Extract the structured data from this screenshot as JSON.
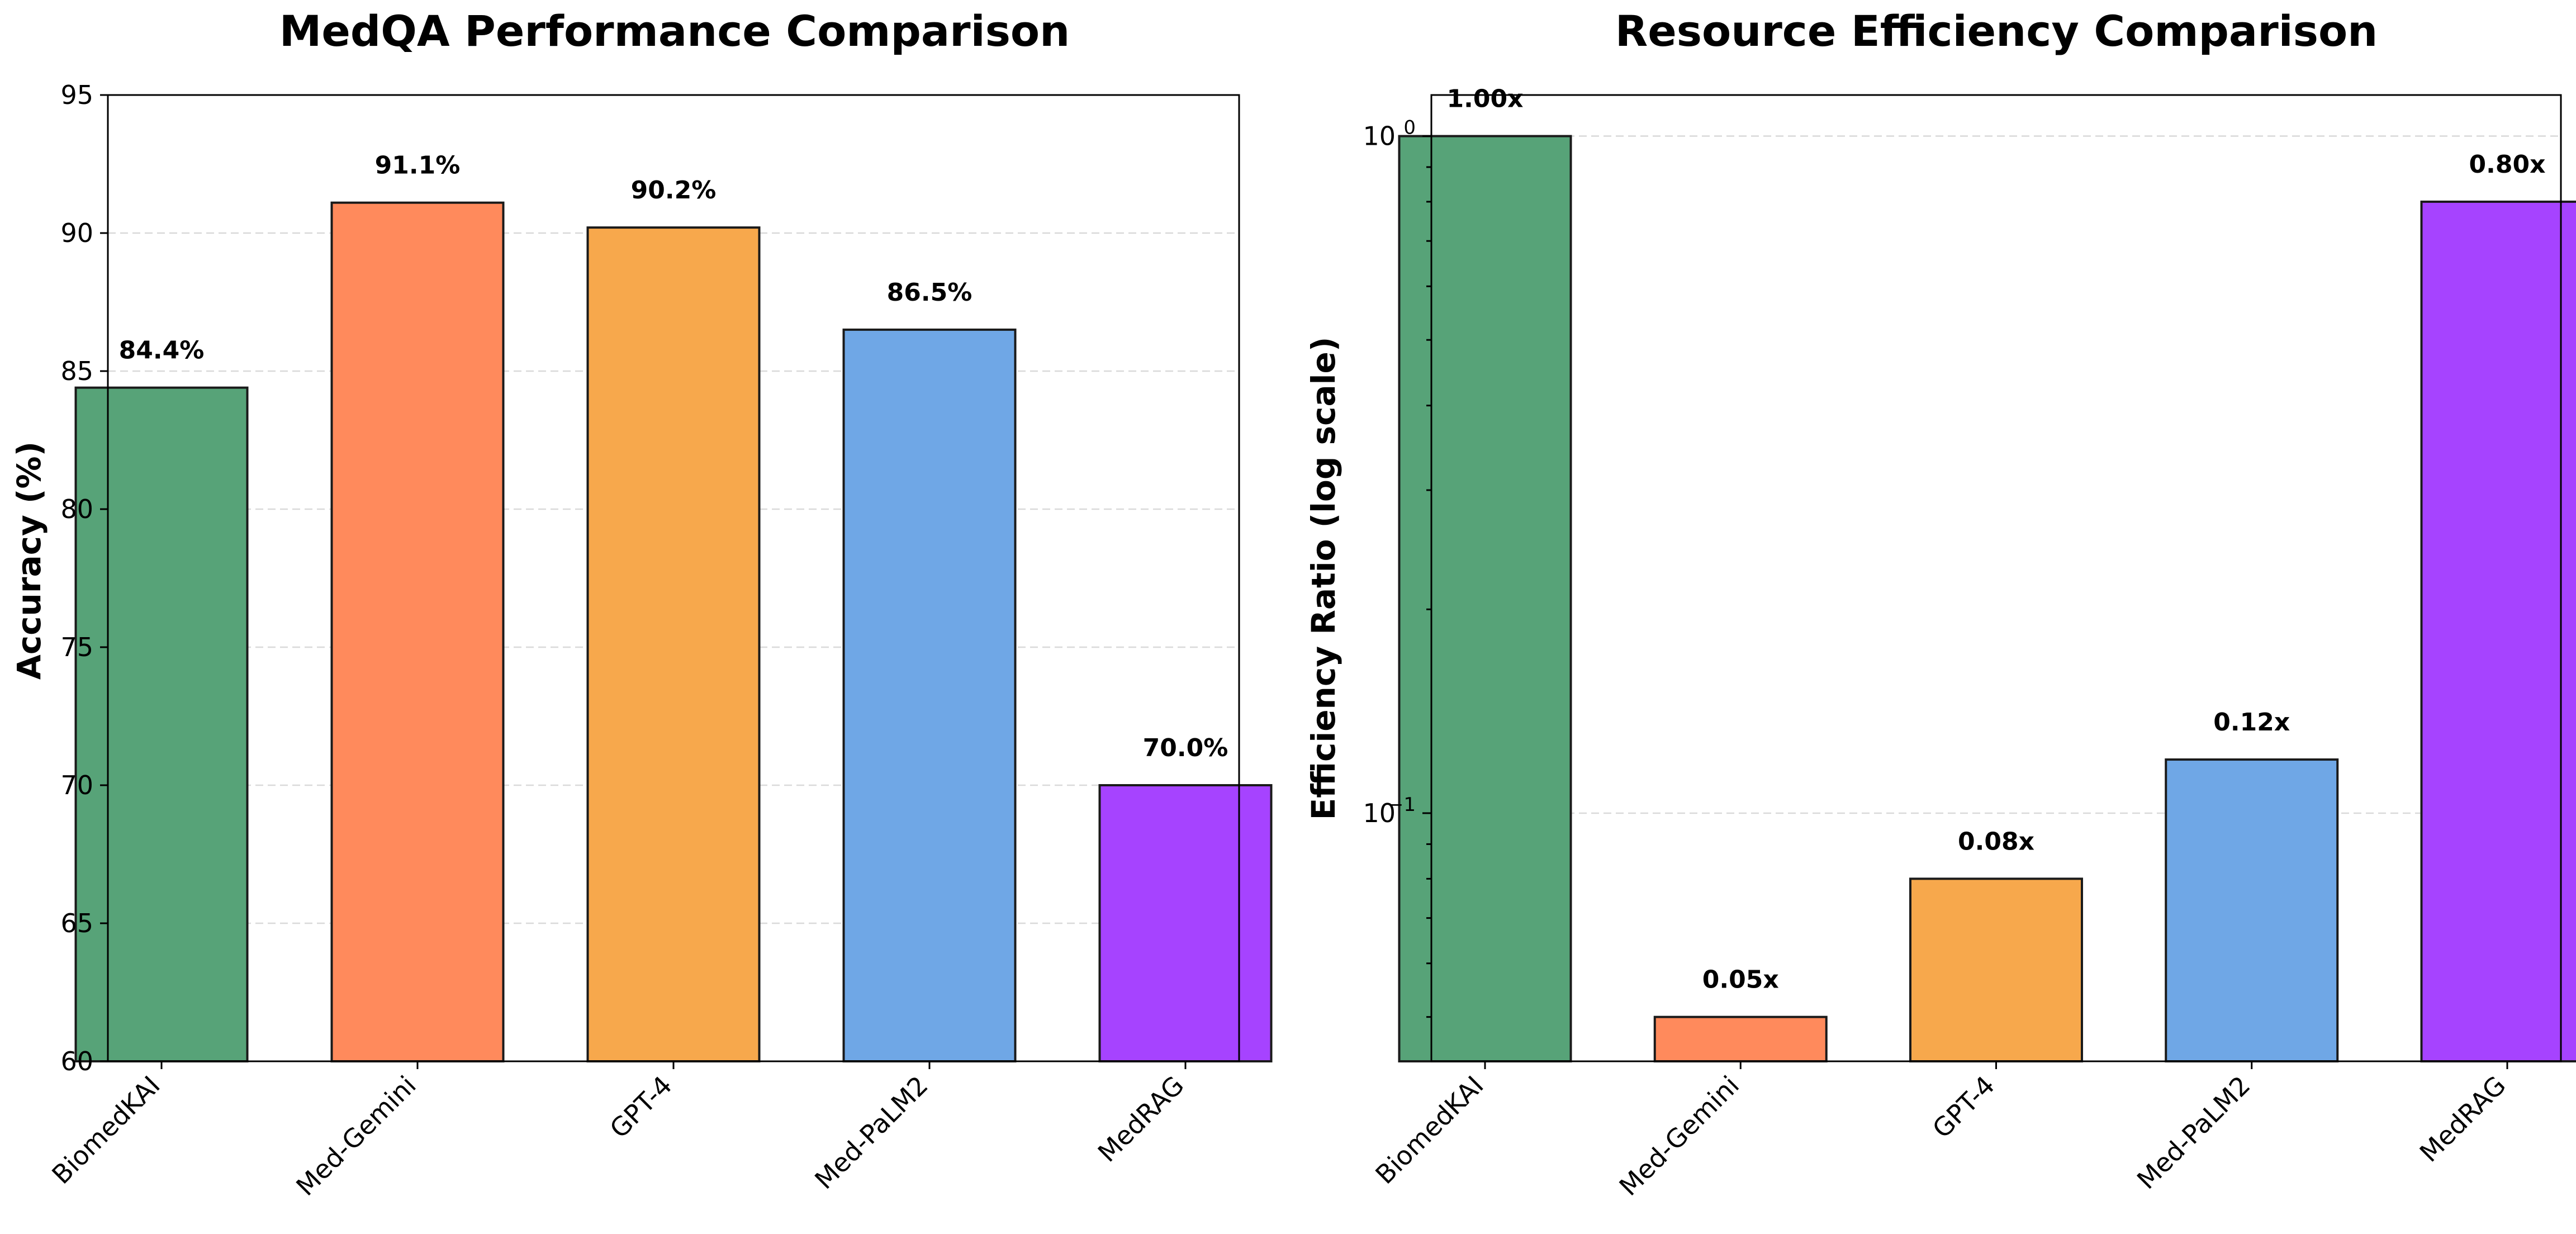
{
  "chart_data": [
    {
      "type": "bar",
      "title": "MedQA Performance Comparison",
      "xlabel": "",
      "ylabel": "Accuracy (%)",
      "categories": [
        "BiomedKAI",
        "Med-Gemini",
        "GPT-4",
        "Med-PaLM2",
        "MedRAG"
      ],
      "values": [
        84.4,
        91.1,
        90.2,
        86.5,
        70.0
      ],
      "data_labels": [
        "84.4%",
        "91.1%",
        "90.2%",
        "86.5%",
        "70.0%"
      ],
      "ylim": [
        60,
        95
      ],
      "yticks": [
        "60",
        "65",
        "70",
        "75",
        "80",
        "85",
        "90",
        "95"
      ],
      "y_scale": "linear",
      "grid": "horizontal dashed",
      "colors": [
        "#57a378",
        "#ff8a5c",
        "#f7a84c",
        "#6fa7e6",
        "#a643ff"
      ]
    },
    {
      "type": "bar",
      "title": "Resource Efficiency Comparison",
      "xlabel": "",
      "ylabel": "Efficiency Ratio (log scale)",
      "categories": [
        "BiomedKAI",
        "Med-Gemini",
        "GPT-4",
        "Med-PaLM2",
        "MedRAG"
      ],
      "values": [
        1.0,
        0.05,
        0.08,
        0.12,
        0.8
      ],
      "data_labels": [
        "1.00x",
        "0.05x",
        "0.08x",
        "0.12x",
        "0.80x"
      ],
      "ylim": [
        0.043,
        1.15
      ],
      "y_scale": "log",
      "yticks": [
        {
          "base": "10",
          "exp": "0",
          "value": 1
        },
        {
          "base": "10",
          "exp": "−1",
          "value": 0.1
        }
      ],
      "grid": "horizontal dashed",
      "colors": [
        "#57a378",
        "#ff8a5c",
        "#f7a84c",
        "#6fa7e6",
        "#a643ff"
      ]
    }
  ]
}
